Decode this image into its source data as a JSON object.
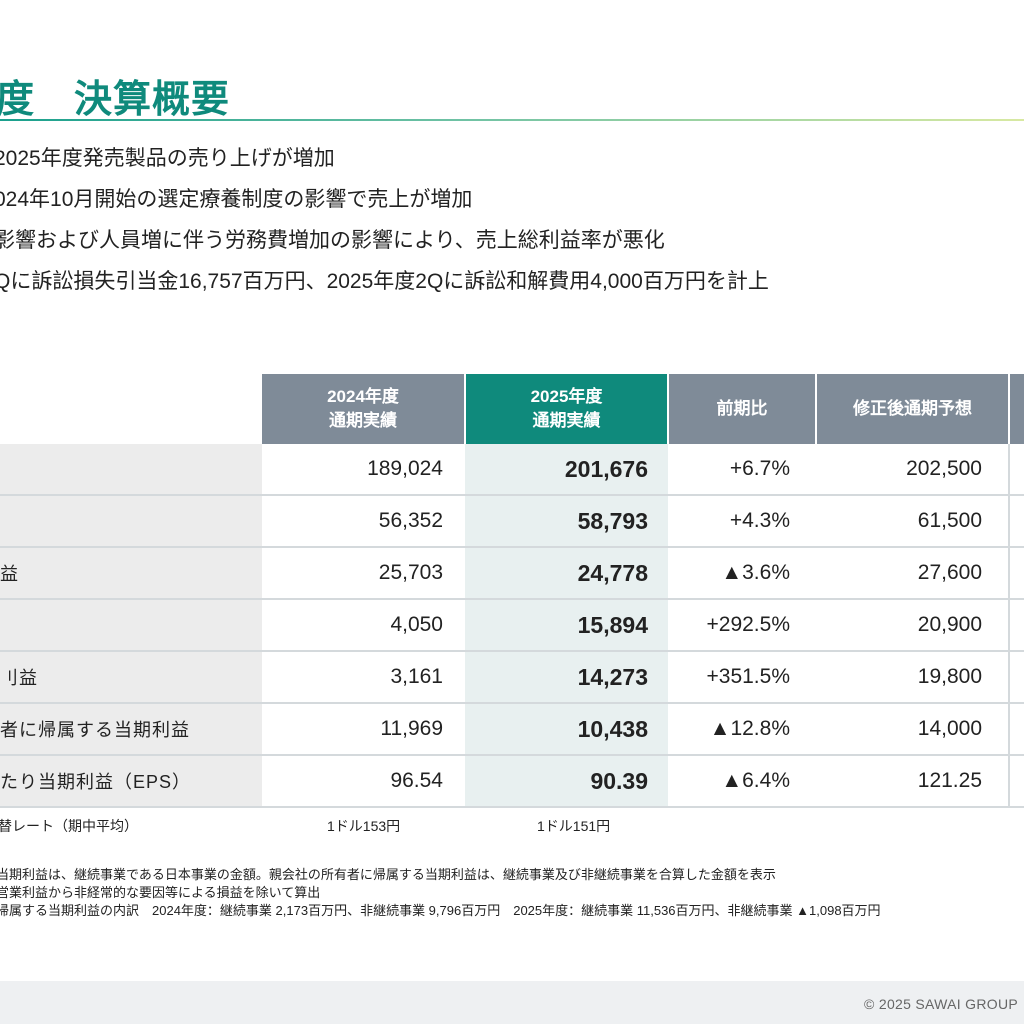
{
  "header": {
    "title": "度　決算概要"
  },
  "bullets": [
    "2025年度発売製品の売り上げが増加",
    "024年10月開始の選定療養制度の影響で売上が増加",
    "影響および人員増に伴う労務費増加の影響により、売上総利益率が悪化",
    "Qに訴訟損失引当金16,757百万円、2025年度2Qに訴訟和解費用4,000百万円を計上"
  ],
  "table": {
    "headers": {
      "fy2024": [
        "2024年度",
        "通期実績"
      ],
      "fy2025": [
        "2025年度",
        "通期実績"
      ],
      "yoy": "前期比",
      "forecast": "修正後通期予想"
    },
    "rows": [
      {
        "label": "",
        "fy2024": "189,024",
        "fy2025": "201,676",
        "yoy": "+6.7%",
        "forecast": "202,500"
      },
      {
        "label": "",
        "fy2024": "56,352",
        "fy2025": "58,793",
        "yoy": "+4.3%",
        "forecast": "61,500"
      },
      {
        "label": "益",
        "fy2024": "25,703",
        "fy2025": "24,778",
        "yoy": "▲3.6%",
        "forecast": "27,600"
      },
      {
        "label": "",
        "fy2024": "4,050",
        "fy2025": "15,894",
        "yoy": "+292.5%",
        "forecast": "20,900"
      },
      {
        "label": "刂益",
        "fy2024": "3,161",
        "fy2025": "14,273",
        "yoy": "+351.5%",
        "forecast": "19,800"
      },
      {
        "label": "者に帰属する当期利益",
        "fy2024": "11,969",
        "fy2025": "10,438",
        "yoy": "▲12.8%",
        "forecast": "14,000"
      },
      {
        "label": "たり当期利益（EPS）",
        "fy2024": "96.54",
        "fy2025": "90.39",
        "yoy": "▲6.4%",
        "forecast": "121.25"
      }
    ]
  },
  "fx": {
    "label": "替レート（期中平均）",
    "fy2024": "1ドル153円",
    "fy2025": "1ドル151円"
  },
  "notes": [
    "当期利益は、継続事業である日本事業の金額。親会社の所有者に帰属する当期利益は、継続事業及び非継続事業を合算した金額を表示",
    "営業利益から非経常的な要因等による損益を除いて算出",
    "帰属する当期利益の内訳　2024年度：継続事業 2,173百万円、非継続事業 9,796百万円　2025年度：継続事業 11,536百万円、非継続事業 ▲1,098百万円"
  ],
  "footer": {
    "copyright": "© 2025 SAWAI GROUP"
  }
}
